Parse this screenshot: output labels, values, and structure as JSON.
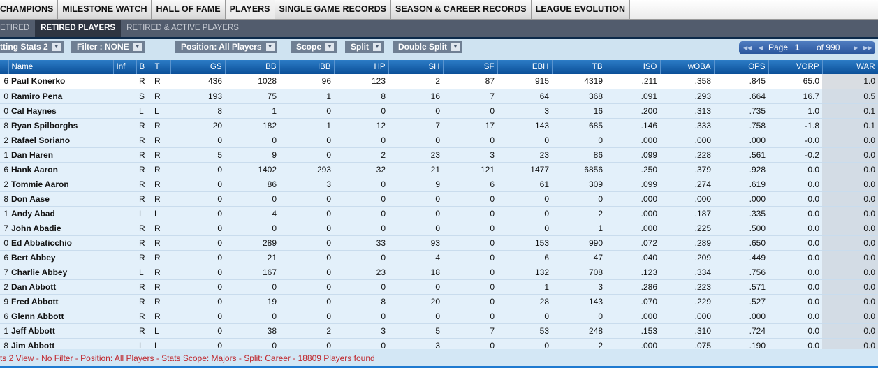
{
  "top_tabs": [
    "CHAMPIONS",
    "MILESTONE WATCH",
    "HALL OF FAME",
    "PLAYERS",
    "SINGLE GAME RECORDS",
    "SEASON & CAREER RECORDS",
    "LEAGUE EVOLUTION"
  ],
  "sub_tabs": [
    "ETIRED",
    "RETIRED PLAYERS",
    "RETIRED & ACTIVE PLAYERS"
  ],
  "toolbar": {
    "view": "tting Stats 2",
    "filter": "Filter : NONE",
    "position": "Position: All Players",
    "scope": "Scope",
    "split": "Split",
    "double_split": "Double Split"
  },
  "pager": {
    "label": "Page",
    "page": "1",
    "of": "of 990"
  },
  "columns": [
    "",
    "Name",
    "Inf",
    "B",
    "T",
    "GS",
    "BB",
    "IBB",
    "HP",
    "SH",
    "SF",
    "EBH",
    "TB",
    "ISO",
    "wOBA",
    "OPS",
    "VORP",
    "WAR"
  ],
  "rows": [
    [
      "6",
      "Paul Konerko",
      "",
      "R",
      "R",
      "436",
      "1028",
      "96",
      "123",
      "2",
      "87",
      "915",
      "4319",
      ".211",
      ".358",
      ".845",
      "65.0",
      "1.0"
    ],
    [
      "0",
      "Ramiro Pena",
      "",
      "S",
      "R",
      "193",
      "75",
      "1",
      "8",
      "16",
      "7",
      "64",
      "368",
      ".091",
      ".293",
      ".664",
      "16.7",
      "0.5"
    ],
    [
      "0",
      "Cal Haynes",
      "",
      "L",
      "L",
      "8",
      "1",
      "0",
      "0",
      "0",
      "0",
      "3",
      "16",
      ".200",
      ".313",
      ".735",
      "1.0",
      "0.1"
    ],
    [
      "8",
      "Ryan Spilborghs",
      "",
      "R",
      "R",
      "20",
      "182",
      "1",
      "12",
      "7",
      "17",
      "143",
      "685",
      ".146",
      ".333",
      ".758",
      "-1.8",
      "0.1"
    ],
    [
      "2",
      "Rafael Soriano",
      "",
      "R",
      "R",
      "0",
      "0",
      "0",
      "0",
      "0",
      "0",
      "0",
      "0",
      ".000",
      ".000",
      ".000",
      "-0.0",
      "0.0"
    ],
    [
      "1",
      "Dan Haren",
      "",
      "R",
      "R",
      "5",
      "9",
      "0",
      "2",
      "23",
      "3",
      "23",
      "86",
      ".099",
      ".228",
      ".561",
      "-0.2",
      "0.0"
    ],
    [
      "6",
      "Hank Aaron",
      "",
      "R",
      "R",
      "0",
      "1402",
      "293",
      "32",
      "21",
      "121",
      "1477",
      "6856",
      ".250",
      ".379",
      ".928",
      "0.0",
      "0.0"
    ],
    [
      "2",
      "Tommie Aaron",
      "",
      "R",
      "R",
      "0",
      "86",
      "3",
      "0",
      "9",
      "6",
      "61",
      "309",
      ".099",
      ".274",
      ".619",
      "0.0",
      "0.0"
    ],
    [
      "8",
      "Don Aase",
      "",
      "R",
      "R",
      "0",
      "0",
      "0",
      "0",
      "0",
      "0",
      "0",
      "0",
      ".000",
      ".000",
      ".000",
      "0.0",
      "0.0"
    ],
    [
      "1",
      "Andy Abad",
      "",
      "L",
      "L",
      "0",
      "4",
      "0",
      "0",
      "0",
      "0",
      "0",
      "2",
      ".000",
      ".187",
      ".335",
      "0.0",
      "0.0"
    ],
    [
      "7",
      "John Abadie",
      "",
      "R",
      "R",
      "0",
      "0",
      "0",
      "0",
      "0",
      "0",
      "0",
      "1",
      ".000",
      ".225",
      ".500",
      "0.0",
      "0.0"
    ],
    [
      "0",
      "Ed Abbaticchio",
      "",
      "R",
      "R",
      "0",
      "289",
      "0",
      "33",
      "93",
      "0",
      "153",
      "990",
      ".072",
      ".289",
      ".650",
      "0.0",
      "0.0"
    ],
    [
      "6",
      "Bert Abbey",
      "",
      "R",
      "R",
      "0",
      "21",
      "0",
      "0",
      "4",
      "0",
      "6",
      "47",
      ".040",
      ".209",
      ".449",
      "0.0",
      "0.0"
    ],
    [
      "7",
      "Charlie Abbey",
      "",
      "L",
      "R",
      "0",
      "167",
      "0",
      "23",
      "18",
      "0",
      "132",
      "708",
      ".123",
      ".334",
      ".756",
      "0.0",
      "0.0"
    ],
    [
      "2",
      "Dan Abbott",
      "",
      "R",
      "R",
      "0",
      "0",
      "0",
      "0",
      "0",
      "0",
      "1",
      "3",
      ".286",
      ".223",
      ".571",
      "0.0",
      "0.0"
    ],
    [
      "9",
      "Fred Abbott",
      "",
      "R",
      "R",
      "0",
      "19",
      "0",
      "8",
      "20",
      "0",
      "28",
      "143",
      ".070",
      ".229",
      ".527",
      "0.0",
      "0.0"
    ],
    [
      "6",
      "Glenn Abbott",
      "",
      "R",
      "R",
      "0",
      "0",
      "0",
      "0",
      "0",
      "0",
      "0",
      "0",
      ".000",
      ".000",
      ".000",
      "0.0",
      "0.0"
    ],
    [
      "1",
      "Jeff Abbott",
      "",
      "R",
      "L",
      "0",
      "38",
      "2",
      "3",
      "5",
      "7",
      "53",
      "248",
      ".153",
      ".310",
      ".724",
      "0.0",
      "0.0"
    ],
    [
      "8",
      "Jim Abbott",
      "",
      "L",
      "L",
      "0",
      "0",
      "0",
      "0",
      "3",
      "0",
      "0",
      "2",
      ".000",
      ".075",
      ".190",
      "0.0",
      "0.0"
    ]
  ],
  "footer": "ts 2 View - No Filter - Position: All Players - Stats Scope: Majors - Split: Career - 18809 Players found"
}
